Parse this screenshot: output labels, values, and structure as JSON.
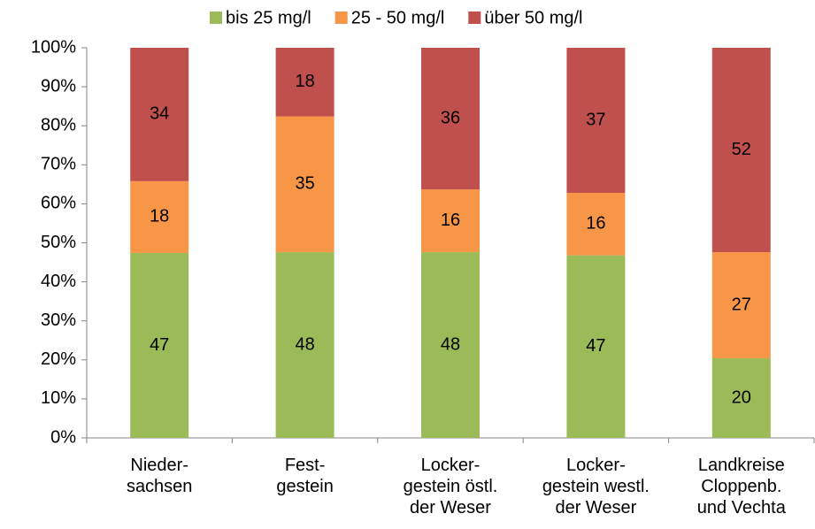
{
  "chart_data": {
    "type": "stacked_bar",
    "categories": [
      "Nieder-\nsachsen",
      "Fest-\ngestein",
      "Locker-\ngestein östl.\nder Weser",
      "Locker-\ngestein westl.\nder Weser",
      "Landkreise\nCloppenb.\nund Vechta"
    ],
    "series": [
      {
        "name": "bis 25 mg/l",
        "color": "#9bbb59",
        "values": [
          47.4,
          47.6,
          47.6,
          46.8,
          20.4
        ],
        "value_labels": [
          "47",
          "48",
          "48",
          "47",
          "20"
        ]
      },
      {
        "name": "25 - 50 mg/l",
        "color": "#f79646",
        "values": [
          18.4,
          34.8,
          16.1,
          16.0,
          27.2
        ],
        "value_labels": [
          "18",
          "35",
          "16",
          "16",
          "27"
        ]
      },
      {
        "name": "über 50 mg/l",
        "color": "#c0504d",
        "values": [
          34.2,
          17.6,
          36.3,
          37.2,
          52.4
        ],
        "value_labels": [
          "34",
          "18",
          "36",
          "37",
          "52"
        ]
      }
    ],
    "ylim": [
      0,
      100
    ],
    "yticks": [
      {
        "value": 0,
        "label": "0%"
      },
      {
        "value": 10,
        "label": "10%"
      },
      {
        "value": 20,
        "label": "20%"
      },
      {
        "value": 30,
        "label": "30%"
      },
      {
        "value": 40,
        "label": "40%"
      },
      {
        "value": 50,
        "label": "50%"
      },
      {
        "value": 60,
        "label": "60%"
      },
      {
        "value": 70,
        "label": "70%"
      },
      {
        "value": 80,
        "label": "80%"
      },
      {
        "value": 90,
        "label": "90%"
      },
      {
        "value": 100,
        "label": "100%"
      }
    ],
    "legend": "top"
  }
}
